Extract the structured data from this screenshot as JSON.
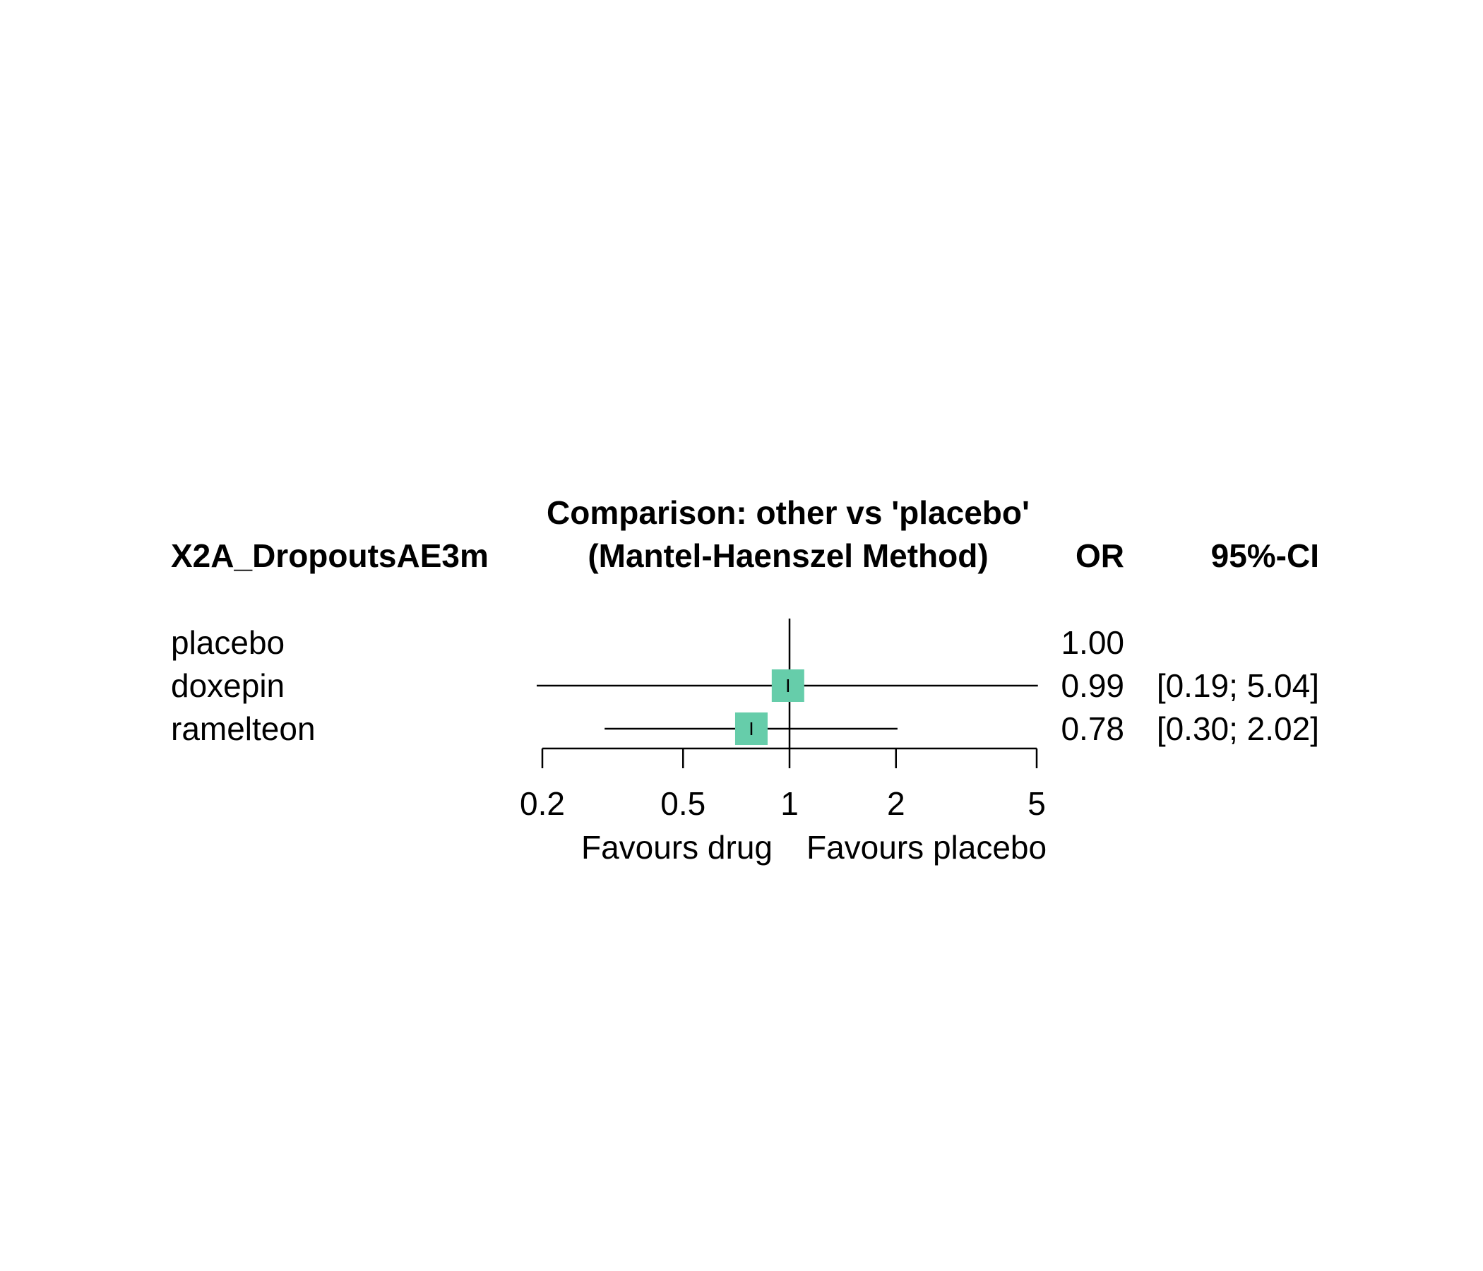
{
  "chart_data": {
    "type": "forest",
    "title": "Comparison: other vs 'placebo'",
    "subtitle": "(Mantel-Haenszel Method)",
    "outcome_label": "X2A_DropoutsAE3m",
    "columns": {
      "estimate": "OR",
      "ci": "95%-CI"
    },
    "x_scale": "log",
    "reference_value": 1,
    "xlim": [
      0.2,
      5
    ],
    "ticks": [
      {
        "value": 0.2,
        "label": "0.2"
      },
      {
        "value": 0.5,
        "label": "0.5"
      },
      {
        "value": 1,
        "label": "1"
      },
      {
        "value": 2,
        "label": "2"
      },
      {
        "value": 5,
        "label": "5"
      }
    ],
    "x_labels": {
      "left": "Favours drug",
      "right": "Favours placebo"
    },
    "marker_color": "#66CDAA",
    "rows": [
      {
        "name": "placebo",
        "or": 1.0,
        "lower": null,
        "upper": null,
        "or_text": "1.00",
        "ci_text": ""
      },
      {
        "name": "doxepin",
        "or": 0.99,
        "lower": 0.19,
        "upper": 5.04,
        "or_text": "0.99",
        "ci_text": "[0.19; 5.04]"
      },
      {
        "name": "ramelteon",
        "or": 0.78,
        "lower": 0.3,
        "upper": 2.02,
        "or_text": "0.78",
        "ci_text": "[0.30; 2.02]"
      }
    ]
  }
}
